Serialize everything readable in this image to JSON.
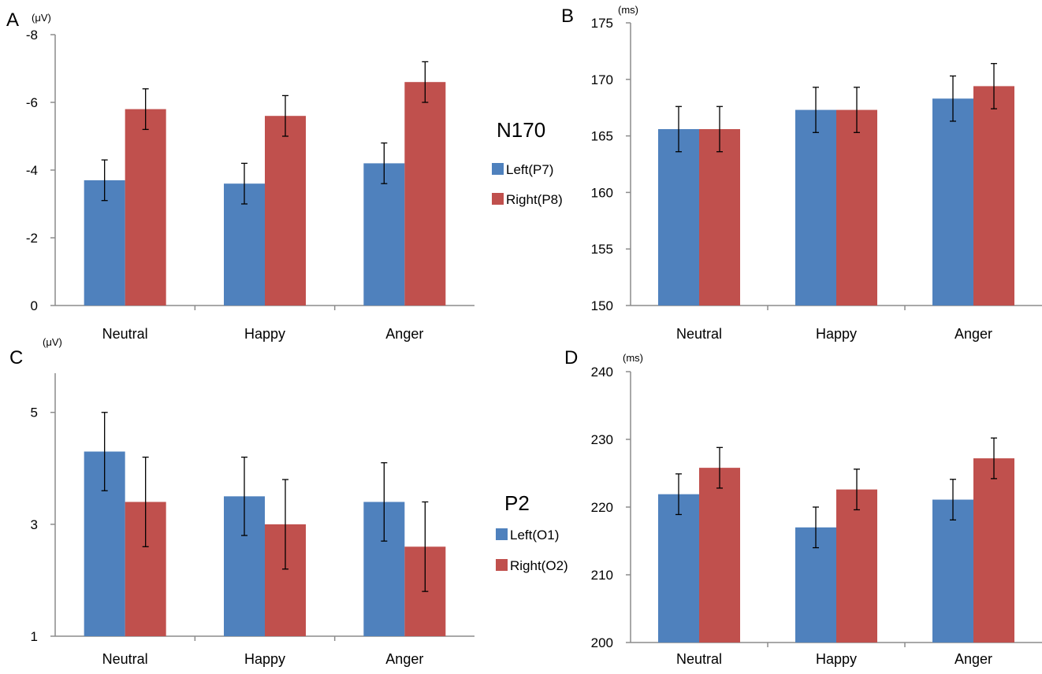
{
  "components": {
    "top": "N170",
    "bottom": "P2"
  },
  "legends": {
    "top": [
      "Left(P7)",
      "Right(P8)"
    ],
    "bottom": [
      "Left(O1)",
      "Right(O2)"
    ]
  },
  "colors": {
    "left": "#4f81bd",
    "right": "#c0504d",
    "axis": "#8c8c8c",
    "error": "#000000"
  },
  "chart_data": [
    {
      "id": "A",
      "type": "bar",
      "panel_label": "A",
      "unit_label": "(μV)",
      "categories": [
        "Neutral",
        "Happy",
        "Anger"
      ],
      "ylim": [
        0,
        -8
      ],
      "y_inverted": true,
      "yticks": [
        0,
        -2,
        -4,
        -6,
        -8
      ],
      "ytick_labels": [
        "0",
        "-2",
        "-4",
        "-6",
        "-8"
      ],
      "series": [
        {
          "name": "Left(P7)",
          "values": [
            -3.7,
            -3.6,
            -4.2
          ],
          "errors": [
            0.6,
            0.6,
            0.6
          ]
        },
        {
          "name": "Right(P8)",
          "values": [
            -5.8,
            -5.6,
            -6.6
          ],
          "errors": [
            0.6,
            0.6,
            0.6
          ]
        }
      ]
    },
    {
      "id": "B",
      "type": "bar",
      "panel_label": "B",
      "unit_label": "(ms)",
      "categories": [
        "Neutral",
        "Happy",
        "Anger"
      ],
      "ylim": [
        150,
        175
      ],
      "yticks": [
        150,
        155,
        160,
        165,
        170,
        175
      ],
      "ytick_labels": [
        "150",
        "155",
        "160",
        "165",
        "170",
        "175"
      ],
      "series": [
        {
          "name": "Left(P7)",
          "values": [
            165.6,
            167.3,
            168.3
          ],
          "errors": [
            2.0,
            2.0,
            2.0
          ]
        },
        {
          "name": "Right(P8)",
          "values": [
            165.6,
            167.3,
            169.4
          ],
          "errors": [
            2.0,
            2.0,
            2.0
          ]
        }
      ]
    },
    {
      "id": "C",
      "type": "bar",
      "panel_label": "C",
      "unit_label": "(μV)",
      "categories": [
        "Neutral",
        "Happy",
        "Anger"
      ],
      "ylim": [
        1,
        5.7
      ],
      "yticks": [
        1,
        3,
        5
      ],
      "ytick_labels": [
        "1",
        "3",
        "5"
      ],
      "series": [
        {
          "name": "Left(O1)",
          "values": [
            4.3,
            3.5,
            3.4
          ],
          "errors": [
            0.7,
            0.7,
            0.7
          ]
        },
        {
          "name": "Right(O2)",
          "values": [
            3.4,
            3.0,
            2.6
          ],
          "errors": [
            0.8,
            0.8,
            0.8
          ]
        }
      ]
    },
    {
      "id": "D",
      "type": "bar",
      "panel_label": "D",
      "unit_label": "(ms)",
      "categories": [
        "Neutral",
        "Happy",
        "Anger"
      ],
      "ylim": [
        200,
        240
      ],
      "yticks": [
        200,
        210,
        220,
        230,
        240
      ],
      "ytick_labels": [
        "200",
        "210",
        "220",
        "230",
        "240"
      ],
      "series": [
        {
          "name": "Left(O1)",
          "values": [
            221.9,
            217.0,
            221.1
          ],
          "errors": [
            3.0,
            3.0,
            3.0
          ]
        },
        {
          "name": "Right(O2)",
          "values": [
            225.8,
            222.6,
            227.2
          ],
          "errors": [
            3.0,
            3.0,
            3.0
          ]
        }
      ]
    }
  ]
}
